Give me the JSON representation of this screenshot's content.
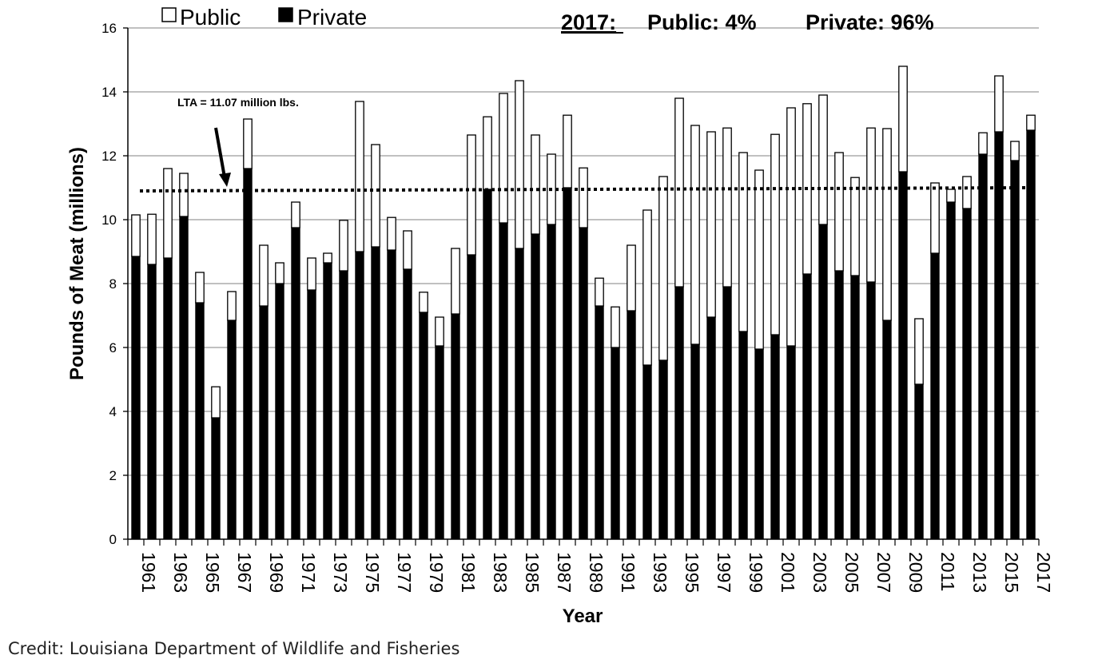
{
  "chart_data": {
    "type": "bar",
    "stacked": true,
    "title": "",
    "xlabel": "Year",
    "ylabel": "Pounds of Meat (millions)",
    "ylim": [
      0,
      16
    ],
    "ytick_step": 2,
    "yticks": [
      "0",
      "2",
      "4",
      "6",
      "8",
      "10",
      "12",
      "14",
      "16"
    ],
    "grid": true,
    "legend_position": "top-left",
    "categories": [
      1961,
      1962,
      1963,
      1964,
      1965,
      1966,
      1967,
      1968,
      1969,
      1970,
      1971,
      1972,
      1973,
      1974,
      1975,
      1976,
      1977,
      1978,
      1979,
      1980,
      1981,
      1982,
      1983,
      1984,
      1985,
      1986,
      1987,
      1988,
      1989,
      1990,
      1991,
      1992,
      1993,
      1994,
      1995,
      1996,
      1997,
      1998,
      1999,
      2000,
      2001,
      2002,
      2003,
      2004,
      2005,
      2006,
      2007,
      2008,
      2009,
      2010,
      2011,
      2012,
      2013,
      2014,
      2015,
      2016,
      2017
    ],
    "xtick_labels": [
      "1961",
      "1963",
      "1965",
      "1967",
      "1969",
      "1971",
      "1973",
      "1975",
      "1977",
      "1979",
      "1981",
      "1983",
      "1985",
      "1987",
      "1989",
      "1991",
      "1993",
      "1995",
      "1997",
      "1999",
      "2001",
      "2003",
      "2005",
      "2007",
      "2009",
      "2011",
      "2013",
      "2015",
      "2017"
    ],
    "series": [
      {
        "name": "Private",
        "color": "#000000",
        "values": [
          8.85,
          8.6,
          8.8,
          10.1,
          7.4,
          3.8,
          6.85,
          11.6,
          7.3,
          8.0,
          9.75,
          7.8,
          8.65,
          8.4,
          9.0,
          9.15,
          9.05,
          8.45,
          7.1,
          6.05,
          7.05,
          8.9,
          10.95,
          9.9,
          9.1,
          9.55,
          9.85,
          11.0,
          9.75,
          7.3,
          6.0,
          7.15,
          5.45,
          5.6,
          7.9,
          6.1,
          6.95,
          7.9,
          6.5,
          5.95,
          6.4,
          6.05,
          8.3,
          9.85,
          8.4,
          8.25,
          8.05,
          6.85,
          11.5,
          4.85,
          8.95,
          10.55,
          10.35,
          12.05,
          12.75,
          11.85,
          12.8
        ]
      },
      {
        "name": "Public",
        "color": "#ffffff",
        "values": [
          1.3,
          1.57,
          2.8,
          1.35,
          0.95,
          0.97,
          0.9,
          1.55,
          1.9,
          0.65,
          0.8,
          1.0,
          0.3,
          1.58,
          4.7,
          3.2,
          1.02,
          1.2,
          0.63,
          0.9,
          2.05,
          3.75,
          2.27,
          4.05,
          5.25,
          3.1,
          2.2,
          2.27,
          1.87,
          0.87,
          1.27,
          2.05,
          4.85,
          5.75,
          5.9,
          6.85,
          5.8,
          4.97,
          5.6,
          5.6,
          6.27,
          7.45,
          5.33,
          4.05,
          3.7,
          3.07,
          4.82,
          6.0,
          3.3,
          2.05,
          2.2,
          0.4,
          1.0,
          0.67,
          1.75,
          0.6,
          0.47
        ]
      }
    ],
    "reference_line": {
      "label": "LTA = 11.07 million lbs.",
      "value": 10.9,
      "value_end": 11.0,
      "style": "dotted"
    },
    "annotation_header": {
      "year_label": "2017:",
      "public_text": "Public:  4%",
      "private_text": "Private:   96%"
    }
  },
  "legend": {
    "public_label": "Public",
    "private_label": "Private"
  },
  "credit": "Credit: Louisiana Department of Wildlife and Fisheries"
}
